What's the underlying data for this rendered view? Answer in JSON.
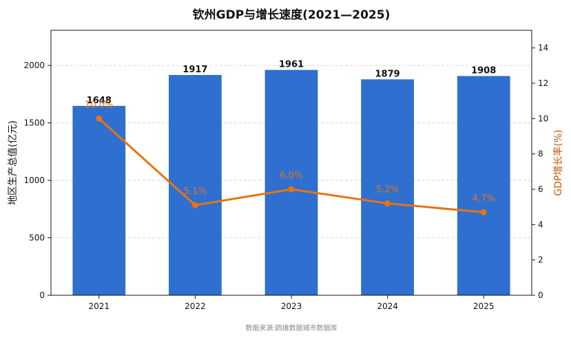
{
  "colors": {
    "bar": "#2f6fd0",
    "line": "#e8740f",
    "right_axis_label": "#c8580a",
    "grid": "#cccccc"
  },
  "chart_data": {
    "type": "bar",
    "title": "钦州GDP与增长速度(2021—2025)",
    "categories": [
      "2021",
      "2022",
      "2023",
      "2024",
      "2025"
    ],
    "series": [
      {
        "values": [
          1648,
          1917,
          1961,
          1879,
          1908
        ],
        "axis": "left",
        "kind": "bar"
      },
      {
        "values": [
          10.0,
          5.1,
          6.0,
          5.2,
          4.7
        ],
        "axis": "right",
        "kind": "line"
      }
    ],
    "bar_labels": [
      "1648",
      "1917",
      "1961",
      "1879",
      "1908"
    ],
    "rate_labels": [
      "10.0%",
      "5.1%",
      "6.0%",
      "5.2%",
      "4.7%"
    ],
    "ylabel_left": "地区生产总值(亿元)",
    "ylabel_right": "GDP增长率(%)",
    "ylim_left": [
      0,
      2306
    ],
    "ylim_right": [
      0,
      15
    ],
    "yticks_left": [
      "0",
      "500",
      "1000",
      "1500",
      "2000"
    ],
    "yticks_right": [
      "0",
      "2",
      "4",
      "6",
      "8",
      "10",
      "12",
      "14"
    ],
    "grid": true,
    "source": "数据来源:鸥维数据城市数据库"
  }
}
